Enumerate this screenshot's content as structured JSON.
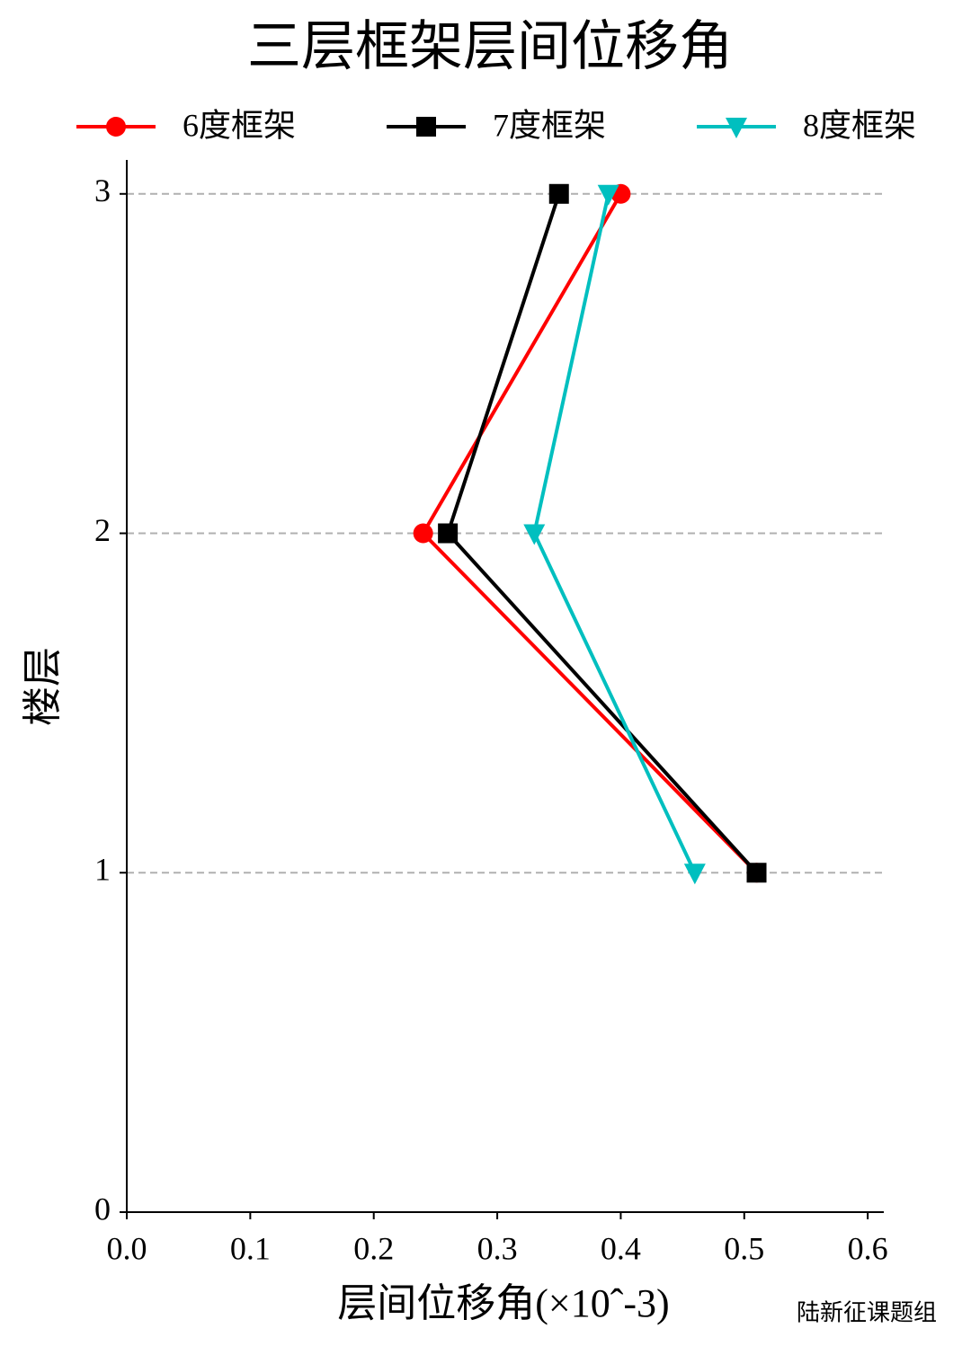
{
  "chart_data": {
    "type": "line",
    "orientation": "horizontal",
    "title": "三层框架层间位移角",
    "x_label": "层间位移角(×10ˆ-3)",
    "y_label": "楼层",
    "watermark": "陆新征课题组",
    "y": [
      1,
      2,
      3
    ],
    "series": [
      {
        "name": "6度框架",
        "color": "#ff0000",
        "marker": "circle",
        "values": [
          0.51,
          0.24,
          0.4
        ]
      },
      {
        "name": "7度框架",
        "color": "#000000",
        "marker": "square",
        "values": [
          0.51,
          0.26,
          0.35
        ]
      },
      {
        "name": "8度框架",
        "color": "#00bfbf",
        "marker": "triangle-down",
        "values": [
          0.46,
          0.33,
          0.39
        ]
      }
    ],
    "xlim": [
      0,
      0.613
    ],
    "xticks": [
      {
        "value": 0,
        "label": "0.0"
      },
      0.1,
      0.2,
      0.3,
      0.4,
      0.5,
      0.6
    ],
    "ylim": [
      0,
      3.1
    ],
    "yticks": [
      0,
      1,
      2,
      3
    ],
    "grid": true,
    "legend": "top"
  }
}
